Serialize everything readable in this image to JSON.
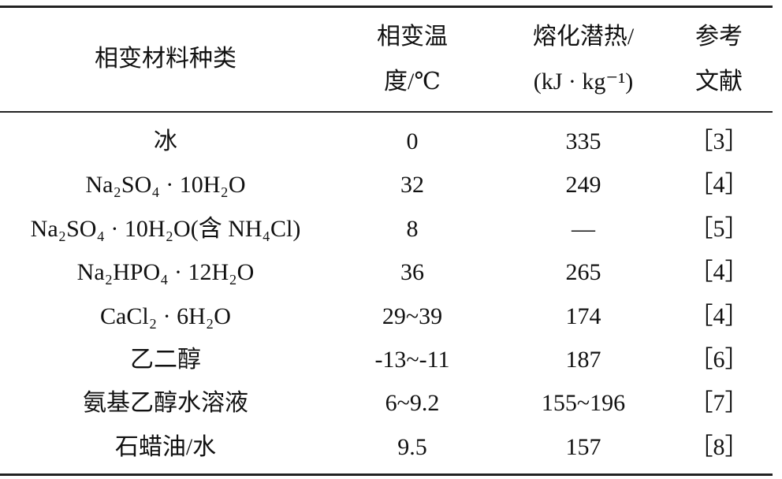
{
  "table": {
    "header": [
      [
        "相变材料种类"
      ],
      [
        "相变温",
        "度/℃"
      ],
      [
        "熔化潜热/",
        "(kJ · kg⁻¹)"
      ],
      [
        "参考",
        "文献"
      ]
    ],
    "rows": [
      [
        "冰",
        "0",
        "335",
        "［3］"
      ],
      [
        "Na₂SO₄ · 10H₂O",
        "32",
        "249",
        "［4］"
      ],
      [
        "Na₂SO₄ · 10H₂O(含 NH₄Cl)",
        "8",
        "—",
        "［5］"
      ],
      [
        "Na₂HPO₄ · 12H₂O",
        "36",
        "265",
        "［4］"
      ],
      [
        "CaCl₂ · 6H₂O",
        "29~39",
        "174",
        "［4］"
      ],
      [
        "乙二醇",
        "-13~-11",
        "187",
        "［6］"
      ],
      [
        "氨基乙醇水溶液",
        "6~9.2",
        "155~196",
        "［7］"
      ],
      [
        "石蜡油/水",
        "9.5",
        "157",
        "［8］"
      ]
    ]
  }
}
